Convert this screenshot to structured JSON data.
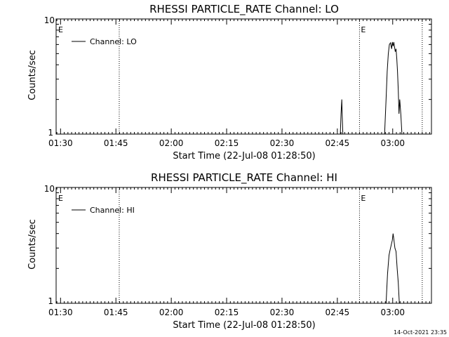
{
  "timestamp": "14-Oct-2021 23:35",
  "chart_data": [
    {
      "type": "line",
      "title": "RHESSI PARTICLE_RATE Channel: LO",
      "xlabel": "Start Time (22-Jul-08 01:28:50)",
      "ylabel": "Counts/sec",
      "y_scale": "log",
      "ylim": [
        1,
        10
      ],
      "y_tick_labels": [
        "1",
        "10"
      ],
      "x_tick_labels": [
        "01:30",
        "01:45",
        "02:00",
        "02:15",
        "02:30",
        "02:45",
        "03:00"
      ],
      "x_ticks_minutes": [
        90,
        105,
        120,
        135,
        150,
        165,
        180
      ],
      "xlim_minutes": [
        88.8,
        190.5
      ],
      "legend": {
        "placement": "top-left",
        "entries": [
          "Channel: LO"
        ]
      },
      "event_markers": [
        {
          "label": "E",
          "time_minutes": 89.0,
          "line": false
        },
        {
          "label": "",
          "time_minutes": 105.9,
          "line": true
        },
        {
          "label": "E",
          "time_minutes": 171.0,
          "line": true
        },
        {
          "label": "",
          "time_minutes": 188.0,
          "line": true
        }
      ],
      "series": [
        {
          "name": "Channel: LO",
          "segments": [
            {
              "x": [
                165.8,
                166.0,
                166.2,
                166.3,
                166.5
              ],
              "y": [
                1,
                1.5,
                2.0,
                1.5,
                1
              ]
            },
            {
              "x": [
                177.8,
                178.2,
                178.5,
                178.8,
                179.1,
                179.4,
                179.7,
                179.9,
                180.1,
                180.3,
                180.5,
                180.7,
                180.9,
                181.1,
                181.3,
                181.5,
                181.7,
                181.9,
                182.2,
                182.5
              ],
              "y": [
                1,
                2.0,
                3.5,
                5.0,
                6.0,
                6.2,
                5.5,
                6.3,
                5.8,
                6.3,
                5.7,
                5.2,
                5.5,
                4.5,
                3.5,
                2.4,
                1.5,
                2.0,
                1.5,
                1
              ]
            }
          ]
        }
      ]
    },
    {
      "type": "line",
      "title": "RHESSI PARTICLE_RATE Channel: HI",
      "xlabel": "Start Time (22-Jul-08 01:28:50)",
      "ylabel": "Counts/sec",
      "y_scale": "log",
      "ylim": [
        1,
        10
      ],
      "y_tick_labels": [
        "1",
        "10"
      ],
      "x_tick_labels": [
        "01:30",
        "01:45",
        "02:00",
        "02:15",
        "02:30",
        "02:45",
        "03:00"
      ],
      "x_ticks_minutes": [
        90,
        105,
        120,
        135,
        150,
        165,
        180
      ],
      "xlim_minutes": [
        88.8,
        190.5
      ],
      "legend": {
        "placement": "top-left",
        "entries": [
          "Channel: HI"
        ]
      },
      "event_markers": [
        {
          "label": "E",
          "time_minutes": 89.0,
          "line": false
        },
        {
          "label": "",
          "time_minutes": 105.9,
          "line": true
        },
        {
          "label": "E",
          "time_minutes": 171.0,
          "line": true
        },
        {
          "label": "",
          "time_minutes": 188.0,
          "line": true
        }
      ],
      "series": [
        {
          "name": "Channel: HI",
          "segments": [
            {
              "x": [
                178.2,
                178.6,
                179.0,
                179.3,
                179.6,
                179.9,
                180.1,
                180.3,
                180.6,
                180.9,
                181.2,
                181.5,
                181.8
              ],
              "y": [
                1,
                1.8,
                2.6,
                2.9,
                3.2,
                3.5,
                4.0,
                3.6,
                3.0,
                2.8,
                2.0,
                1.5,
                1
              ]
            }
          ]
        }
      ]
    }
  ]
}
